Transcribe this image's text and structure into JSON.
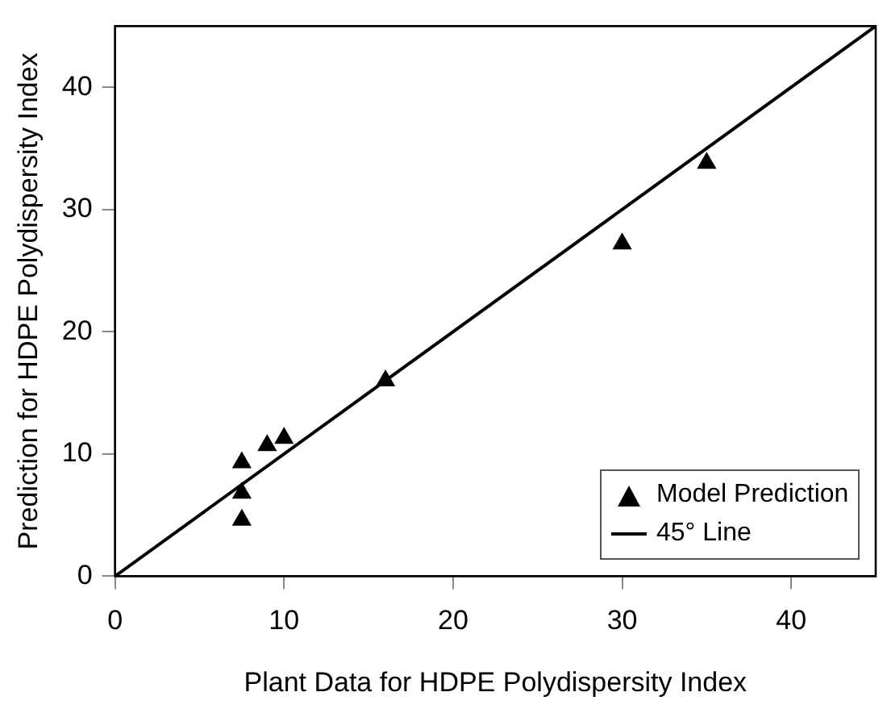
{
  "chart_data": {
    "type": "scatter",
    "xlabel": "Plant Data for HDPE Polydispersity Index",
    "ylabel": "Prediction for HDPE Polydispersity Index",
    "series": [
      {
        "name": "Model Prediction",
        "color": "#000000",
        "marker": "triangle",
        "x": [
          7.5,
          7.5,
          7.5,
          9,
          10,
          16,
          30,
          35
        ],
        "values": [
          9.3,
          6.8,
          4.6,
          10.7,
          11.3,
          16,
          27.2,
          33.8
        ]
      },
      {
        "name": "45° Line",
        "type": "line",
        "color": "#000000",
        "marker": "none",
        "line_style": "solid",
        "x": [
          0,
          45
        ],
        "values": [
          0,
          45
        ]
      }
    ],
    "xlim": [
      0,
      45
    ],
    "ylim": [
      0,
      45
    ],
    "xticks": [
      0,
      10,
      20,
      30,
      40
    ],
    "yticks": [
      0,
      10,
      20,
      30,
      40
    ],
    "grid": false,
    "legend": "bottom right"
  }
}
